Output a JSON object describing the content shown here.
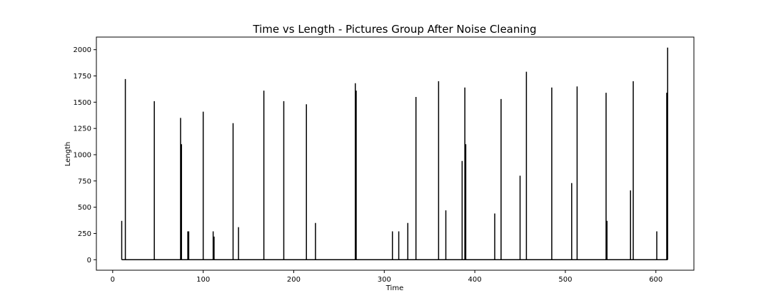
{
  "chart_data": {
    "type": "line",
    "title": "Time vs Length - Pictures Group After Noise Cleaning",
    "xlabel": "Time",
    "ylabel": "Length",
    "xlim": [
      -18,
      642
    ],
    "ylim": [
      -100,
      2120
    ],
    "xticks": [
      0,
      100,
      200,
      300,
      400,
      500,
      600
    ],
    "yticks": [
      0,
      250,
      500,
      750,
      1000,
      1250,
      1500,
      1750,
      2000
    ],
    "grid": false,
    "series_color": "#000000",
    "series": [
      {
        "x": [
          10,
          14,
          46,
          75,
          76,
          83,
          84,
          100,
          111,
          112,
          133,
          139,
          167,
          189,
          214,
          224,
          268,
          269,
          309,
          316,
          326,
          335,
          360,
          368,
          386,
          389,
          390,
          422,
          429,
          450,
          457,
          485,
          507,
          513,
          545,
          546,
          572,
          575,
          601,
          612,
          613
        ],
        "values": [
          370,
          1720,
          1510,
          1350,
          1100,
          270,
          270,
          1410,
          270,
          220,
          1300,
          310,
          1610,
          1510,
          1480,
          350,
          1680,
          1610,
          270,
          270,
          350,
          1550,
          1700,
          470,
          940,
          1640,
          1100,
          440,
          1530,
          800,
          1790,
          1640,
          730,
          1650,
          1590,
          370,
          660,
          1700,
          270,
          1590,
          2020
        ]
      }
    ]
  }
}
